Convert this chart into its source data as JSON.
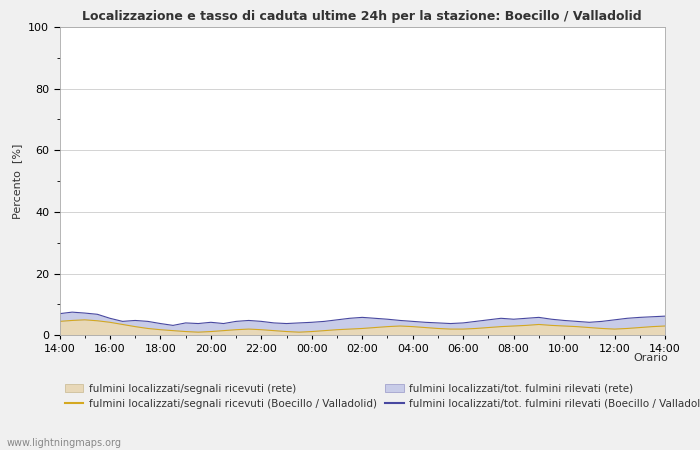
{
  "title": "Localizzazione e tasso di caduta ultime 24h per la stazione: Boecillo / Valladolid",
  "xlabel": "Orario",
  "ylabel": "Percento  [%]",
  "ylim": [
    0,
    100
  ],
  "yticks_major": [
    0,
    20,
    40,
    60,
    80,
    100
  ],
  "yticks_minor": [
    10,
    30,
    50,
    70,
    90
  ],
  "xtick_labels": [
    "14:00",
    "16:00",
    "18:00",
    "20:00",
    "22:00",
    "00:00",
    "02:00",
    "04:00",
    "06:00",
    "08:00",
    "10:00",
    "12:00",
    "14:00"
  ],
  "background_color": "#f0f0f0",
  "plot_bg_color": "#ffffff",
  "fill_rete_color": "#e8d8b8",
  "fill_boecillo_color": "#c8cce8",
  "line_rete_segnali_color": "#d4a820",
  "line_boecillo_segnali_color": "#4848a0",
  "line_boecillo_tot_color": "#4848a0",
  "watermark": "www.lightningmaps.org",
  "legend_labels": [
    "fulmini localizzati/segnali ricevuti (rete)",
    "fulmini localizzati/segnali ricevuti (Boecillo / Valladolid)",
    "fulmini localizzati/tot. fulmini rilevati (rete)",
    "fulmini localizzati/tot. fulmini rilevati (Boecillo / Valladolid)"
  ],
  "x_values": [
    0,
    0.5,
    1,
    1.5,
    2,
    2.5,
    3,
    3.5,
    4,
    4.5,
    5,
    5.5,
    6,
    6.5,
    7,
    7.5,
    8,
    8.5,
    9,
    9.5,
    10,
    10.5,
    11,
    11.5,
    12,
    12.5,
    13,
    13.5,
    14,
    14.5,
    15,
    15.5,
    16,
    16.5,
    17,
    17.5,
    18,
    18.5,
    19,
    19.5,
    20,
    20.5,
    21,
    21.5,
    22,
    22.5,
    23,
    23.5,
    24
  ],
  "y_rete_segnali": [
    4.5,
    4.8,
    5.0,
    4.7,
    4.2,
    3.5,
    2.8,
    2.2,
    1.8,
    1.5,
    1.2,
    1.0,
    1.2,
    1.5,
    1.8,
    2.0,
    1.8,
    1.5,
    1.2,
    1.0,
    1.2,
    1.5,
    1.8,
    2.0,
    2.2,
    2.5,
    2.8,
    3.0,
    2.8,
    2.5,
    2.2,
    2.0,
    2.0,
    2.2,
    2.5,
    2.8,
    3.0,
    3.2,
    3.5,
    3.2,
    3.0,
    2.8,
    2.5,
    2.2,
    2.0,
    2.2,
    2.5,
    2.8,
    3.0
  ],
  "y_boecillo_segnali": [
    7.0,
    7.5,
    7.2,
    6.8,
    5.5,
    4.5,
    4.8,
    4.5,
    3.8,
    3.2,
    4.0,
    3.8,
    4.2,
    3.8,
    4.5,
    4.8,
    4.5,
    4.0,
    3.8,
    4.0,
    4.2,
    4.5,
    5.0,
    5.5,
    5.8,
    5.5,
    5.2,
    4.8,
    4.5,
    4.2,
    4.0,
    3.8,
    4.0,
    4.5,
    5.0,
    5.5,
    5.2,
    5.5,
    5.8,
    5.2,
    4.8,
    4.5,
    4.2,
    4.5,
    5.0,
    5.5,
    5.8,
    6.0,
    6.2
  ],
  "y_rete_tot": [
    4.5,
    4.8,
    5.0,
    4.7,
    4.2,
    3.5,
    2.8,
    2.2,
    1.8,
    1.5,
    1.2,
    1.0,
    1.2,
    1.5,
    1.8,
    2.0,
    1.8,
    1.5,
    1.2,
    1.0,
    1.2,
    1.5,
    1.8,
    2.0,
    2.2,
    2.5,
    2.8,
    3.0,
    2.8,
    2.5,
    2.2,
    2.0,
    2.0,
    2.2,
    2.5,
    2.8,
    3.0,
    3.2,
    3.5,
    3.2,
    3.0,
    2.8,
    2.5,
    2.2,
    2.0,
    2.2,
    2.5,
    2.8,
    3.0
  ],
  "y_boecillo_tot": [
    7.0,
    7.5,
    7.2,
    6.8,
    5.5,
    4.5,
    4.8,
    4.5,
    3.8,
    3.2,
    4.0,
    3.8,
    4.2,
    3.8,
    4.5,
    4.8,
    4.5,
    4.0,
    3.8,
    4.0,
    4.2,
    4.5,
    5.0,
    5.5,
    5.8,
    5.5,
    5.2,
    4.8,
    4.5,
    4.2,
    4.0,
    3.8,
    4.0,
    4.5,
    5.0,
    5.5,
    5.2,
    5.5,
    5.8,
    5.2,
    4.8,
    4.5,
    4.2,
    4.5,
    5.0,
    5.5,
    5.8,
    6.0,
    6.2
  ]
}
